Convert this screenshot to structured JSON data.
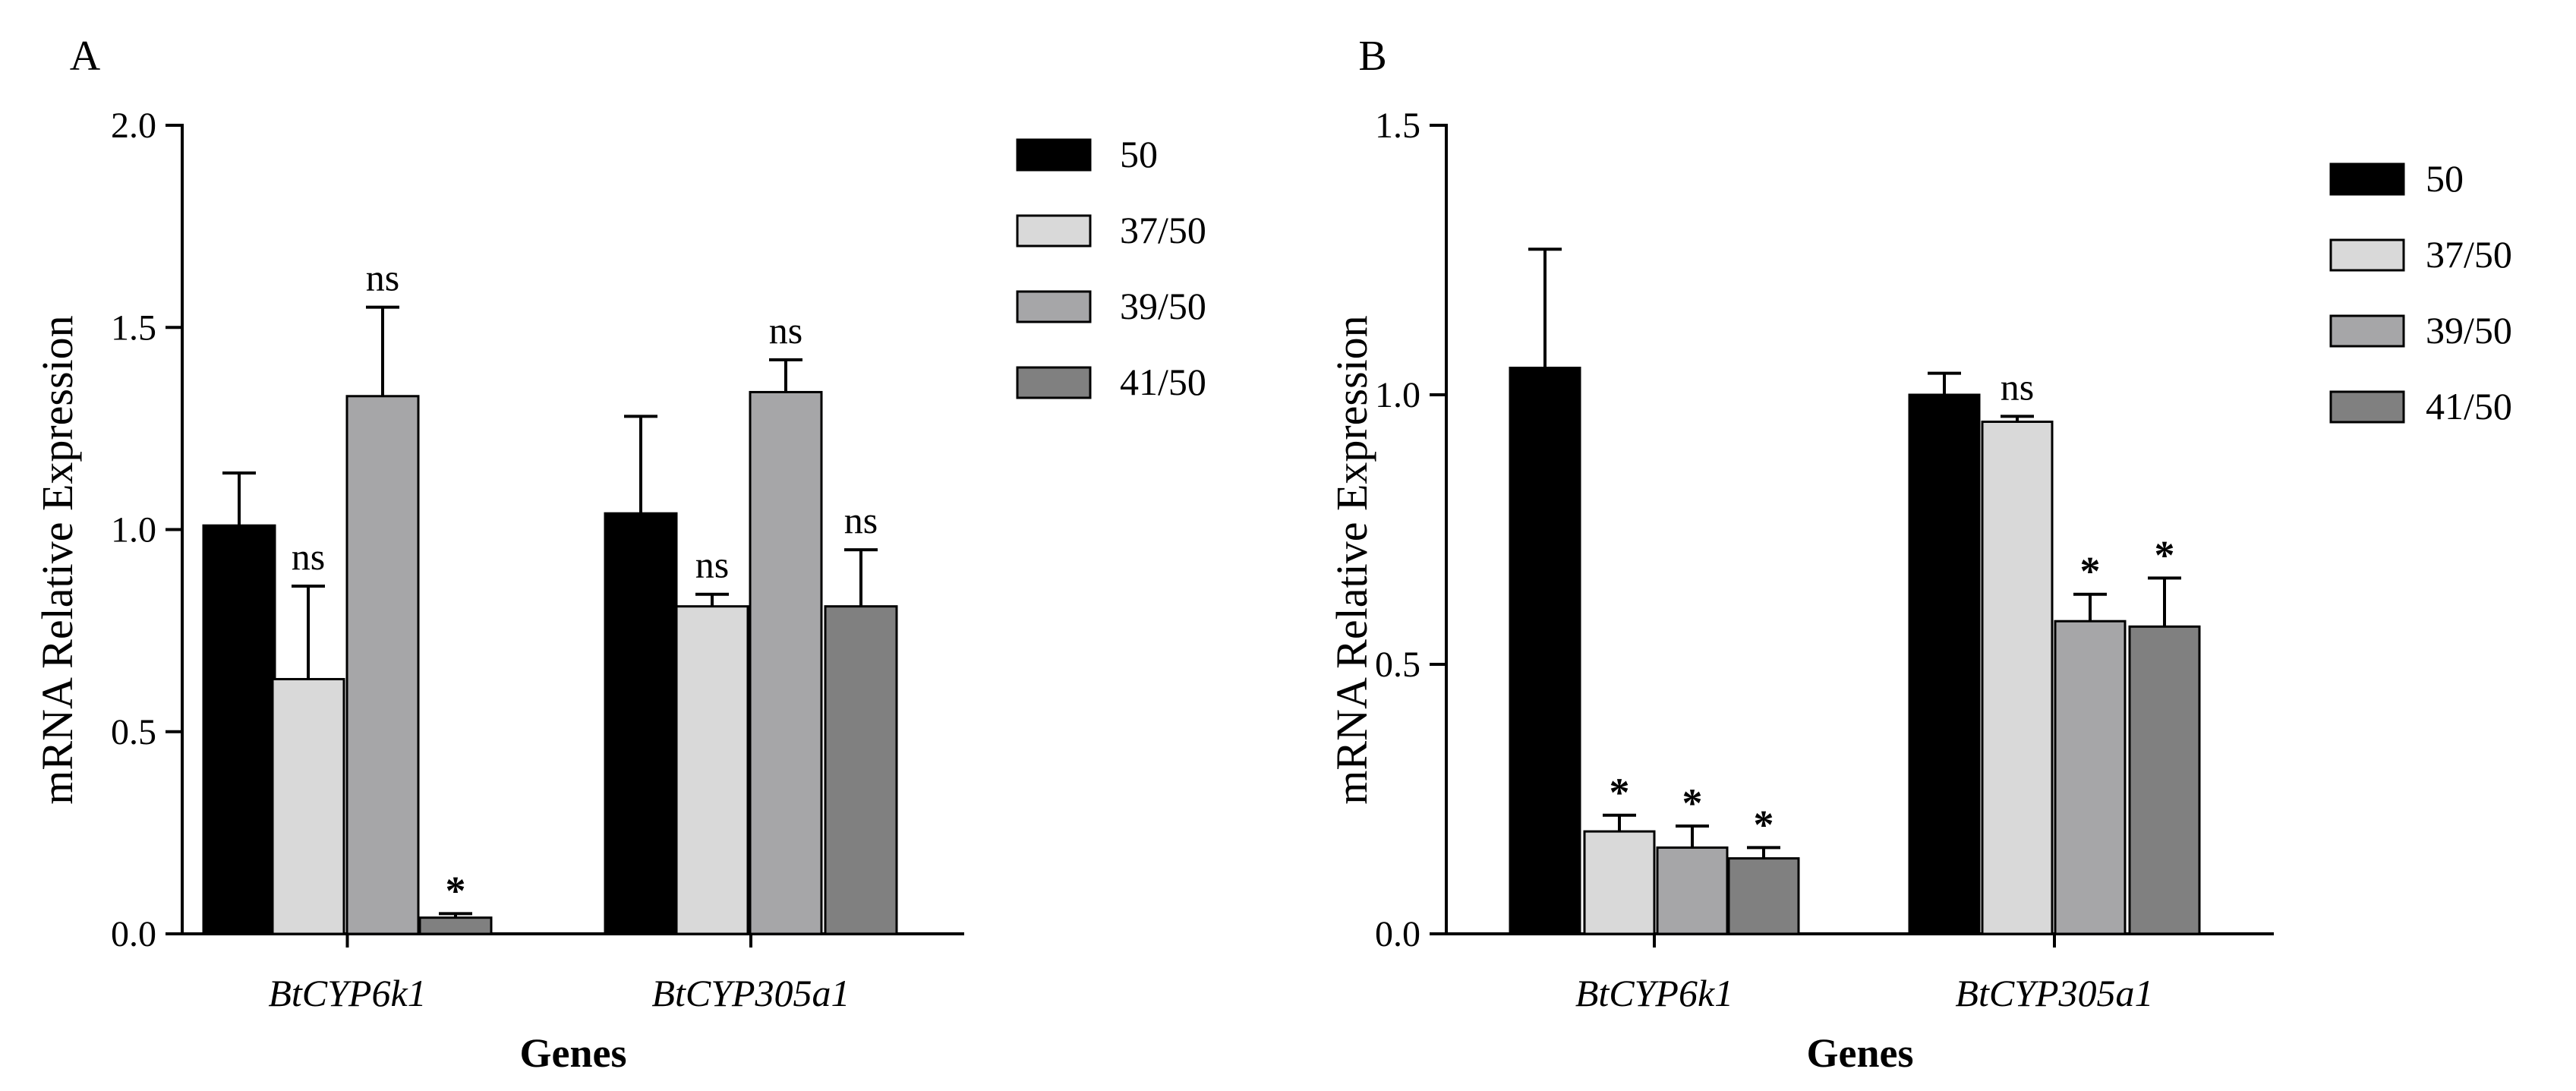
{
  "chart_data": [
    {
      "type": "bar",
      "panel_label": "A",
      "categories": [
        "BtCYP6k1",
        "BtCYP305a1"
      ],
      "series": [
        {
          "name": "50",
          "color": "#000000",
          "values": [
            1.01,
            1.04
          ],
          "errors": [
            0.13,
            0.24
          ],
          "labels": [
            "",
            ""
          ]
        },
        {
          "name": "37/50",
          "color": "#d9d9d9",
          "values": [
            0.63,
            0.81
          ],
          "errors": [
            0.23,
            0.03
          ],
          "labels": [
            "ns",
            "ns"
          ]
        },
        {
          "name": "39/50",
          "color": "#a6a6a8",
          "values": [
            1.33,
            1.34
          ],
          "errors": [
            0.22,
            0.08
          ],
          "labels": [
            "ns",
            "ns"
          ]
        },
        {
          "name": "41/50",
          "color": "#808080",
          "values": [
            0.04,
            0.81
          ],
          "errors": [
            0.01,
            0.14
          ],
          "labels": [
            "*",
            "ns"
          ]
        }
      ],
      "title": "",
      "xlabel": "Genes",
      "ylabel": "mRNA Relative Expression",
      "ylim": [
        0,
        2.0
      ],
      "yticks": [
        "0.0",
        "0.5",
        "1.0",
        "1.5",
        "2.0"
      ],
      "legend": [
        "50",
        "37/50",
        "39/50",
        "41/50"
      ]
    },
    {
      "type": "bar",
      "panel_label": "B",
      "categories": [
        "BtCYP6k1",
        "BtCYP305a1"
      ],
      "series": [
        {
          "name": "50",
          "color": "#000000",
          "values": [
            1.05,
            1.0
          ],
          "errors": [
            0.22,
            0.04
          ],
          "labels": [
            "",
            ""
          ]
        },
        {
          "name": "37/50",
          "color": "#d9d9d9",
          "values": [
            0.19,
            0.95
          ],
          "errors": [
            0.03,
            0.01
          ],
          "labels": [
            "*",
            "ns"
          ]
        },
        {
          "name": "39/50",
          "color": "#a6a6a8",
          "values": [
            0.16,
            0.58
          ],
          "errors": [
            0.04,
            0.05
          ],
          "labels": [
            "*",
            "*"
          ]
        },
        {
          "name": "41/50",
          "color": "#808080",
          "values": [
            0.14,
            0.57
          ],
          "errors": [
            0.02,
            0.09
          ],
          "labels": [
            "*",
            "*"
          ]
        }
      ],
      "title": "",
      "xlabel": "Genes",
      "ylabel": "mRNA Relative Expression",
      "ylim": [
        0,
        1.5
      ],
      "yticks": [
        "0.0",
        "0.5",
        "1.0",
        "1.5"
      ],
      "legend": [
        "50",
        "37/50",
        "39/50",
        "41/50"
      ]
    }
  ]
}
